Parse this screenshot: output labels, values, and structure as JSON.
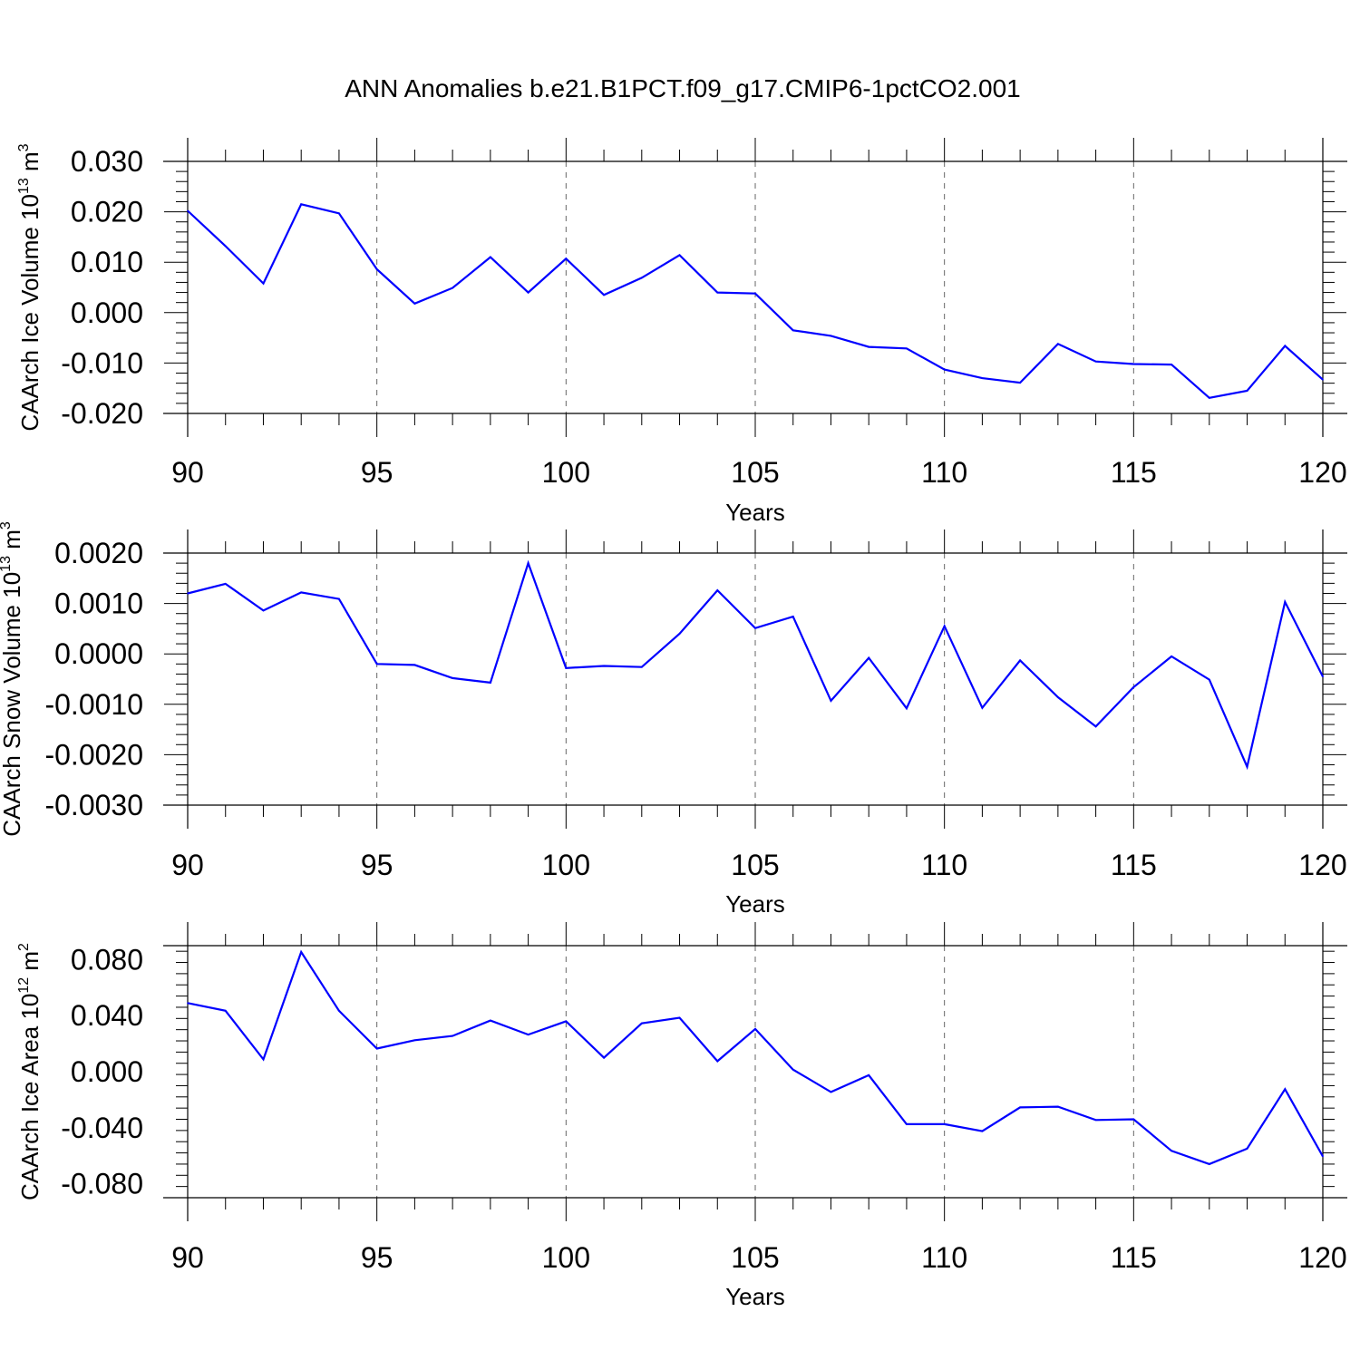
{
  "title": "ANN Anomalies b.e21.B1PCT.f09_g17.CMIP6-1pctCO2.001",
  "chart_data": [
    {
      "type": "line",
      "xlabel": "Years",
      "ylabel": {
        "text": "CAArch Ice Volume 10",
        "exp": "13",
        "unit": " m",
        "unit_exp": "3"
      },
      "xlim": [
        90,
        120
      ],
      "ylim": [
        -0.02,
        0.03
      ],
      "xticks": [
        90,
        95,
        100,
        105,
        110,
        115,
        120
      ],
      "xtick_labels": [
        "90",
        "95",
        "100",
        "105",
        "110",
        "115",
        "120"
      ],
      "yticks": [
        -0.02,
        -0.01,
        0.0,
        0.01,
        0.02,
        0.03
      ],
      "ytick_labels": [
        "-0.020",
        "-0.010",
        "0.000",
        "0.010",
        "0.020",
        "0.030"
      ],
      "grid": "vertical dashed at major x ticks",
      "color": "#0000ff",
      "x": [
        90,
        91,
        92,
        93,
        94,
        95,
        96,
        97,
        98,
        99,
        100,
        101,
        102,
        103,
        104,
        105,
        106,
        107,
        108,
        109,
        110,
        111,
        112,
        113,
        114,
        115,
        116,
        117,
        118,
        119,
        120
      ],
      "values": [
        0.0202,
        0.0132,
        0.0058,
        0.0215,
        0.0197,
        0.0086,
        0.0018,
        0.0049,
        0.011,
        0.004,
        0.0107,
        0.0035,
        0.0069,
        0.0114,
        0.004,
        0.0038,
        -0.0035,
        -0.0046,
        -0.0068,
        -0.0071,
        -0.0113,
        -0.013,
        -0.0139,
        -0.0062,
        -0.0097,
        -0.0102,
        -0.0103,
        -0.0169,
        -0.0155,
        -0.0066,
        -0.0133
      ]
    },
    {
      "type": "line",
      "xlabel": "Years",
      "ylabel": {
        "text": "CAArch Snow Volume 10",
        "exp": "13",
        "unit": " m",
        "unit_exp": "3"
      },
      "xlim": [
        90,
        120
      ],
      "ylim": [
        -0.003,
        0.002
      ],
      "xticks": [
        90,
        95,
        100,
        105,
        110,
        115,
        120
      ],
      "xtick_labels": [
        "90",
        "95",
        "100",
        "105",
        "110",
        "115",
        "120"
      ],
      "yticks": [
        -0.003,
        -0.002,
        -0.001,
        0.0,
        0.001,
        0.002
      ],
      "ytick_labels": [
        "-0.0030",
        "-0.0020",
        "-0.0010",
        "0.0000",
        "0.0010",
        "0.0020"
      ],
      "grid": "vertical dashed at major x ticks",
      "color": "#0000ff",
      "x": [
        90,
        91,
        92,
        93,
        94,
        95,
        96,
        97,
        98,
        99,
        100,
        101,
        102,
        103,
        104,
        105,
        106,
        107,
        108,
        109,
        110,
        111,
        112,
        113,
        114,
        115,
        116,
        117,
        118,
        119,
        120
      ],
      "values": [
        0.0012,
        0.00139,
        0.00086,
        0.00122,
        0.00109,
        -0.0002,
        -0.00022,
        -0.00048,
        -0.00057,
        0.0018,
        -0.00028,
        -0.00024,
        -0.00026,
        0.0004,
        0.00126,
        0.00051,
        0.00074,
        -0.00093,
        -8e-05,
        -0.00108,
        0.00055,
        -0.00107,
        -0.00013,
        -0.00086,
        -0.00144,
        -0.00066,
        -5e-05,
        -0.00051,
        -0.00224,
        0.00103,
        -0.00045
      ]
    },
    {
      "type": "line",
      "xlabel": "Years",
      "ylabel": {
        "text": "CAArch Ice Area 10",
        "exp": "12",
        "unit": " m",
        "unit_exp": "2"
      },
      "xlim": [
        90,
        120
      ],
      "ylim": [
        -0.09,
        0.09
      ],
      "xticks": [
        90,
        95,
        100,
        105,
        110,
        115,
        120
      ],
      "xtick_labels": [
        "90",
        "95",
        "100",
        "105",
        "110",
        "115",
        "120"
      ],
      "yticks": [
        -0.08,
        -0.04,
        0.0,
        0.04,
        0.08
      ],
      "ytick_labels": [
        "-0.080",
        "-0.040",
        "0.000",
        "0.040",
        "0.080"
      ],
      "grid": "vertical dashed at major x ticks",
      "color": "#0000ff",
      "x": [
        90,
        91,
        92,
        93,
        94,
        95,
        96,
        97,
        98,
        99,
        100,
        101,
        102,
        103,
        104,
        105,
        106,
        107,
        108,
        109,
        110,
        111,
        112,
        113,
        114,
        115,
        116,
        117,
        118,
        119,
        120
      ],
      "values": [
        0.049,
        0.0435,
        0.0088,
        0.0855,
        0.0435,
        0.0165,
        0.0225,
        0.0255,
        0.0365,
        0.0265,
        0.036,
        0.01,
        0.0345,
        0.0385,
        0.0075,
        0.0305,
        0.0015,
        -0.0145,
        -0.0025,
        -0.0375,
        -0.0375,
        -0.0425,
        -0.0255,
        -0.025,
        -0.0345,
        -0.034,
        -0.0565,
        -0.066,
        -0.055,
        -0.0125,
        -0.0605
      ]
    }
  ]
}
